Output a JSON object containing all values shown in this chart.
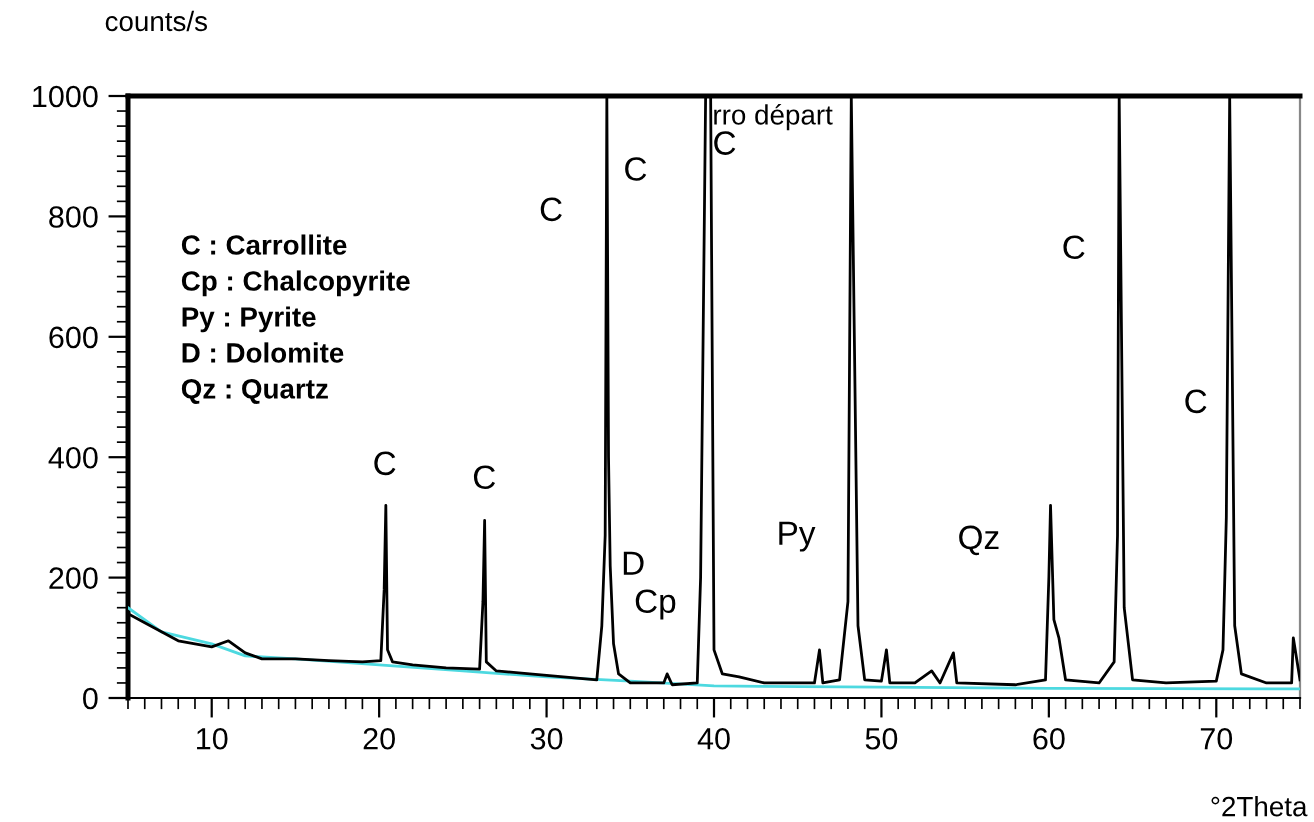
{
  "chart_data": {
    "type": "line",
    "xlabel": "°2Theta",
    "ylabel": "counts/s",
    "xlim": [
      5,
      75
    ],
    "xticks": [
      10,
      20,
      30,
      40,
      50,
      60,
      70
    ],
    "ylim": [
      0,
      1000
    ],
    "yticks": [
      0,
      200,
      400,
      600,
      800,
      1000
    ],
    "series": [
      {
        "color": "#000000",
        "x": [
          5,
          6,
          7,
          8,
          9,
          10,
          11,
          12,
          13,
          15,
          17,
          19,
          20.1,
          20.3,
          20.4,
          20.5,
          20.8,
          22,
          24,
          26,
          26.2,
          26.3,
          26.4,
          27,
          29,
          31,
          33,
          33.3,
          33.5,
          33.6,
          33.7,
          33.8,
          34,
          34.3,
          35,
          37,
          37.2,
          37.5,
          39,
          39.2,
          39.5,
          39.8,
          40,
          40.5,
          41.5,
          43,
          46,
          46.3,
          46.5,
          47.5,
          48,
          48.2,
          48.6,
          49,
          50,
          50.3,
          50.5,
          52,
          53,
          53.5,
          54.3,
          54.5,
          58,
          59.8,
          60,
          60.1,
          60.3,
          60.6,
          61,
          63,
          63.9,
          64.1,
          64.2,
          64.5,
          65,
          67,
          70,
          70.4,
          70.6,
          70.8,
          71.1,
          71.5,
          73,
          74.5,
          74.6,
          75
        ],
        "values": [
          140,
          125,
          110,
          95,
          90,
          85,
          95,
          75,
          65,
          65,
          62,
          60,
          62,
          180,
          320,
          80,
          60,
          55,
          50,
          48,
          160,
          295,
          60,
          45,
          40,
          35,
          30,
          120,
          270,
          1000,
          400,
          220,
          90,
          40,
          25,
          25,
          40,
          22,
          25,
          200,
          1000,
          1000,
          80,
          40,
          35,
          25,
          25,
          80,
          25,
          30,
          160,
          1000,
          120,
          30,
          28,
          80,
          25,
          25,
          45,
          25,
          75,
          25,
          22,
          30,
          200,
          320,
          130,
          100,
          30,
          25,
          60,
          270,
          1000,
          150,
          30,
          25,
          28,
          80,
          300,
          1000,
          120,
          40,
          25,
          25,
          100,
          30
        ]
      },
      {
        "color": "#4dd9e0",
        "x": [
          5,
          7,
          10,
          12,
          15,
          20,
          25,
          30,
          35,
          40,
          50,
          60,
          75
        ],
        "values": [
          150,
          110,
          90,
          70,
          65,
          55,
          45,
          35,
          28,
          20,
          18,
          16,
          15
        ]
      }
    ],
    "annotations": [
      "C : Carrollite\nCp : Chalcopyrite\nPy : Pyrite\nD : Dolomite\nQz : Quartz",
      "rro départ",
      "C",
      "C",
      "C",
      "C",
      "C",
      "D",
      "Cp",
      "Py",
      "Qz",
      "C",
      "C"
    ]
  }
}
